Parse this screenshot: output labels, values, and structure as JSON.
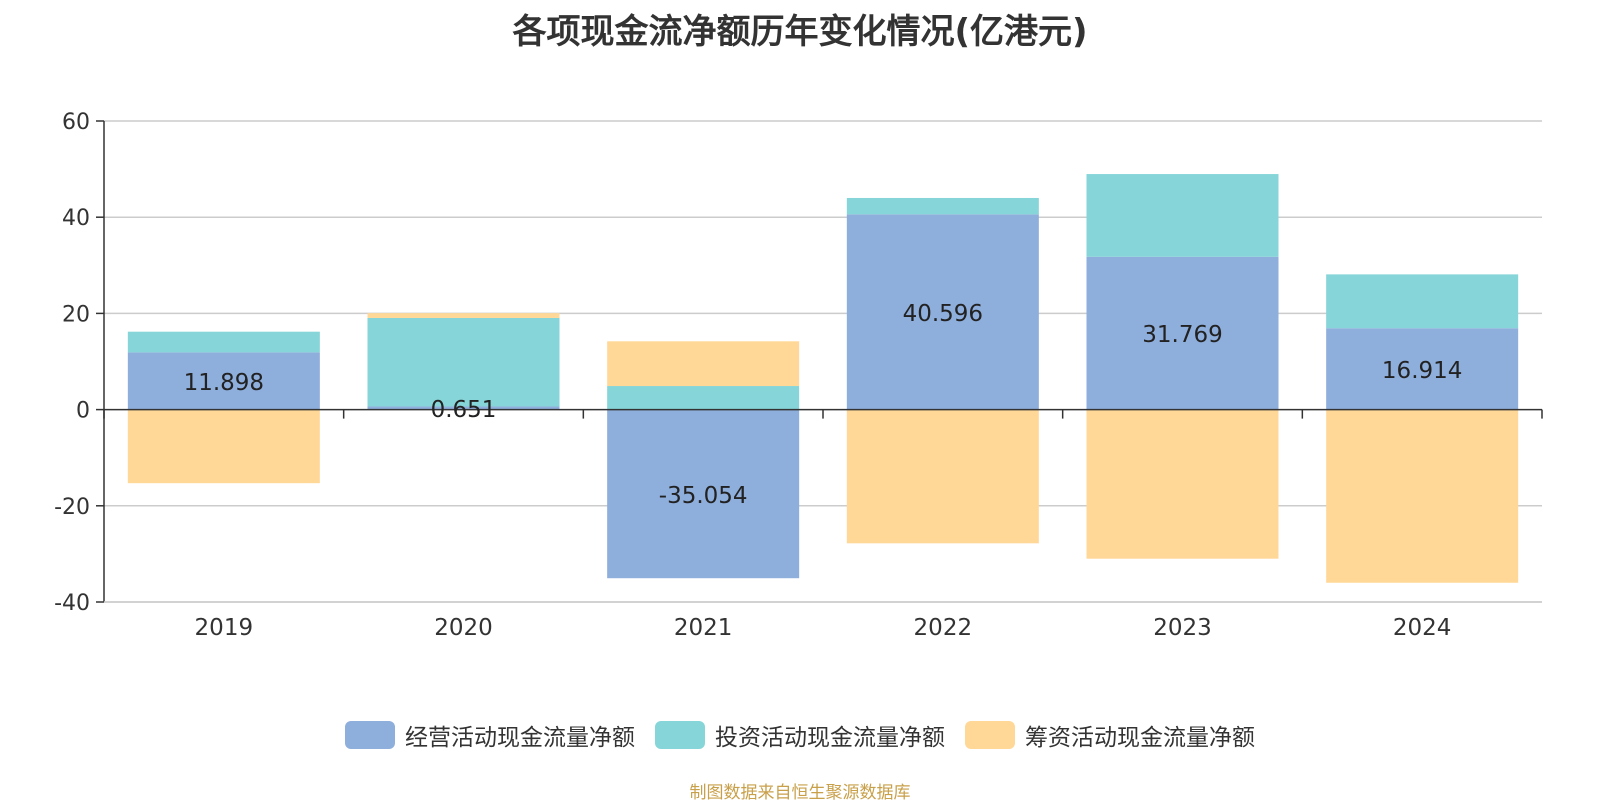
{
  "title": "各项现金流净额历年变化情况(亿港元)",
  "source": "制图数据来自恒生聚源数据库",
  "colors": {
    "operating": "#8eaedc",
    "investing": "#86d5d8",
    "financing": "#ffd898",
    "axis": "#333333",
    "grid": "#cccccc"
  },
  "chart_data": {
    "type": "bar",
    "stacked": true,
    "title": "各项现金流净额历年变化情况(亿港元)",
    "categories": [
      "2019",
      "2020",
      "2021",
      "2022",
      "2023",
      "2024"
    ],
    "ylim": [
      -40,
      60
    ],
    "yticks": [
      60,
      40,
      20,
      0,
      -20,
      -40
    ],
    "ytick_labels": [
      "60",
      "40",
      "20",
      "0",
      "-20",
      "-40"
    ],
    "grid": true,
    "legend_position": "bottom",
    "series": [
      {
        "name": "经营活动现金流量净额",
        "values": [
          11.898,
          0.651,
          -35.054,
          40.596,
          31.769,
          16.914
        ],
        "data_labels": [
          "11.898",
          "0.651",
          "-35.054",
          "40.596",
          "31.769",
          "16.914"
        ]
      },
      {
        "name": "投资活动现金流量净额",
        "values": [
          4.3,
          18.4,
          4.9,
          3.4,
          17.2,
          11.2
        ]
      },
      {
        "name": "筹资活动现金流量净额",
        "values": [
          -15.3,
          1.0,
          9.3,
          -27.8,
          -31.0,
          -36.0
        ]
      }
    ]
  }
}
